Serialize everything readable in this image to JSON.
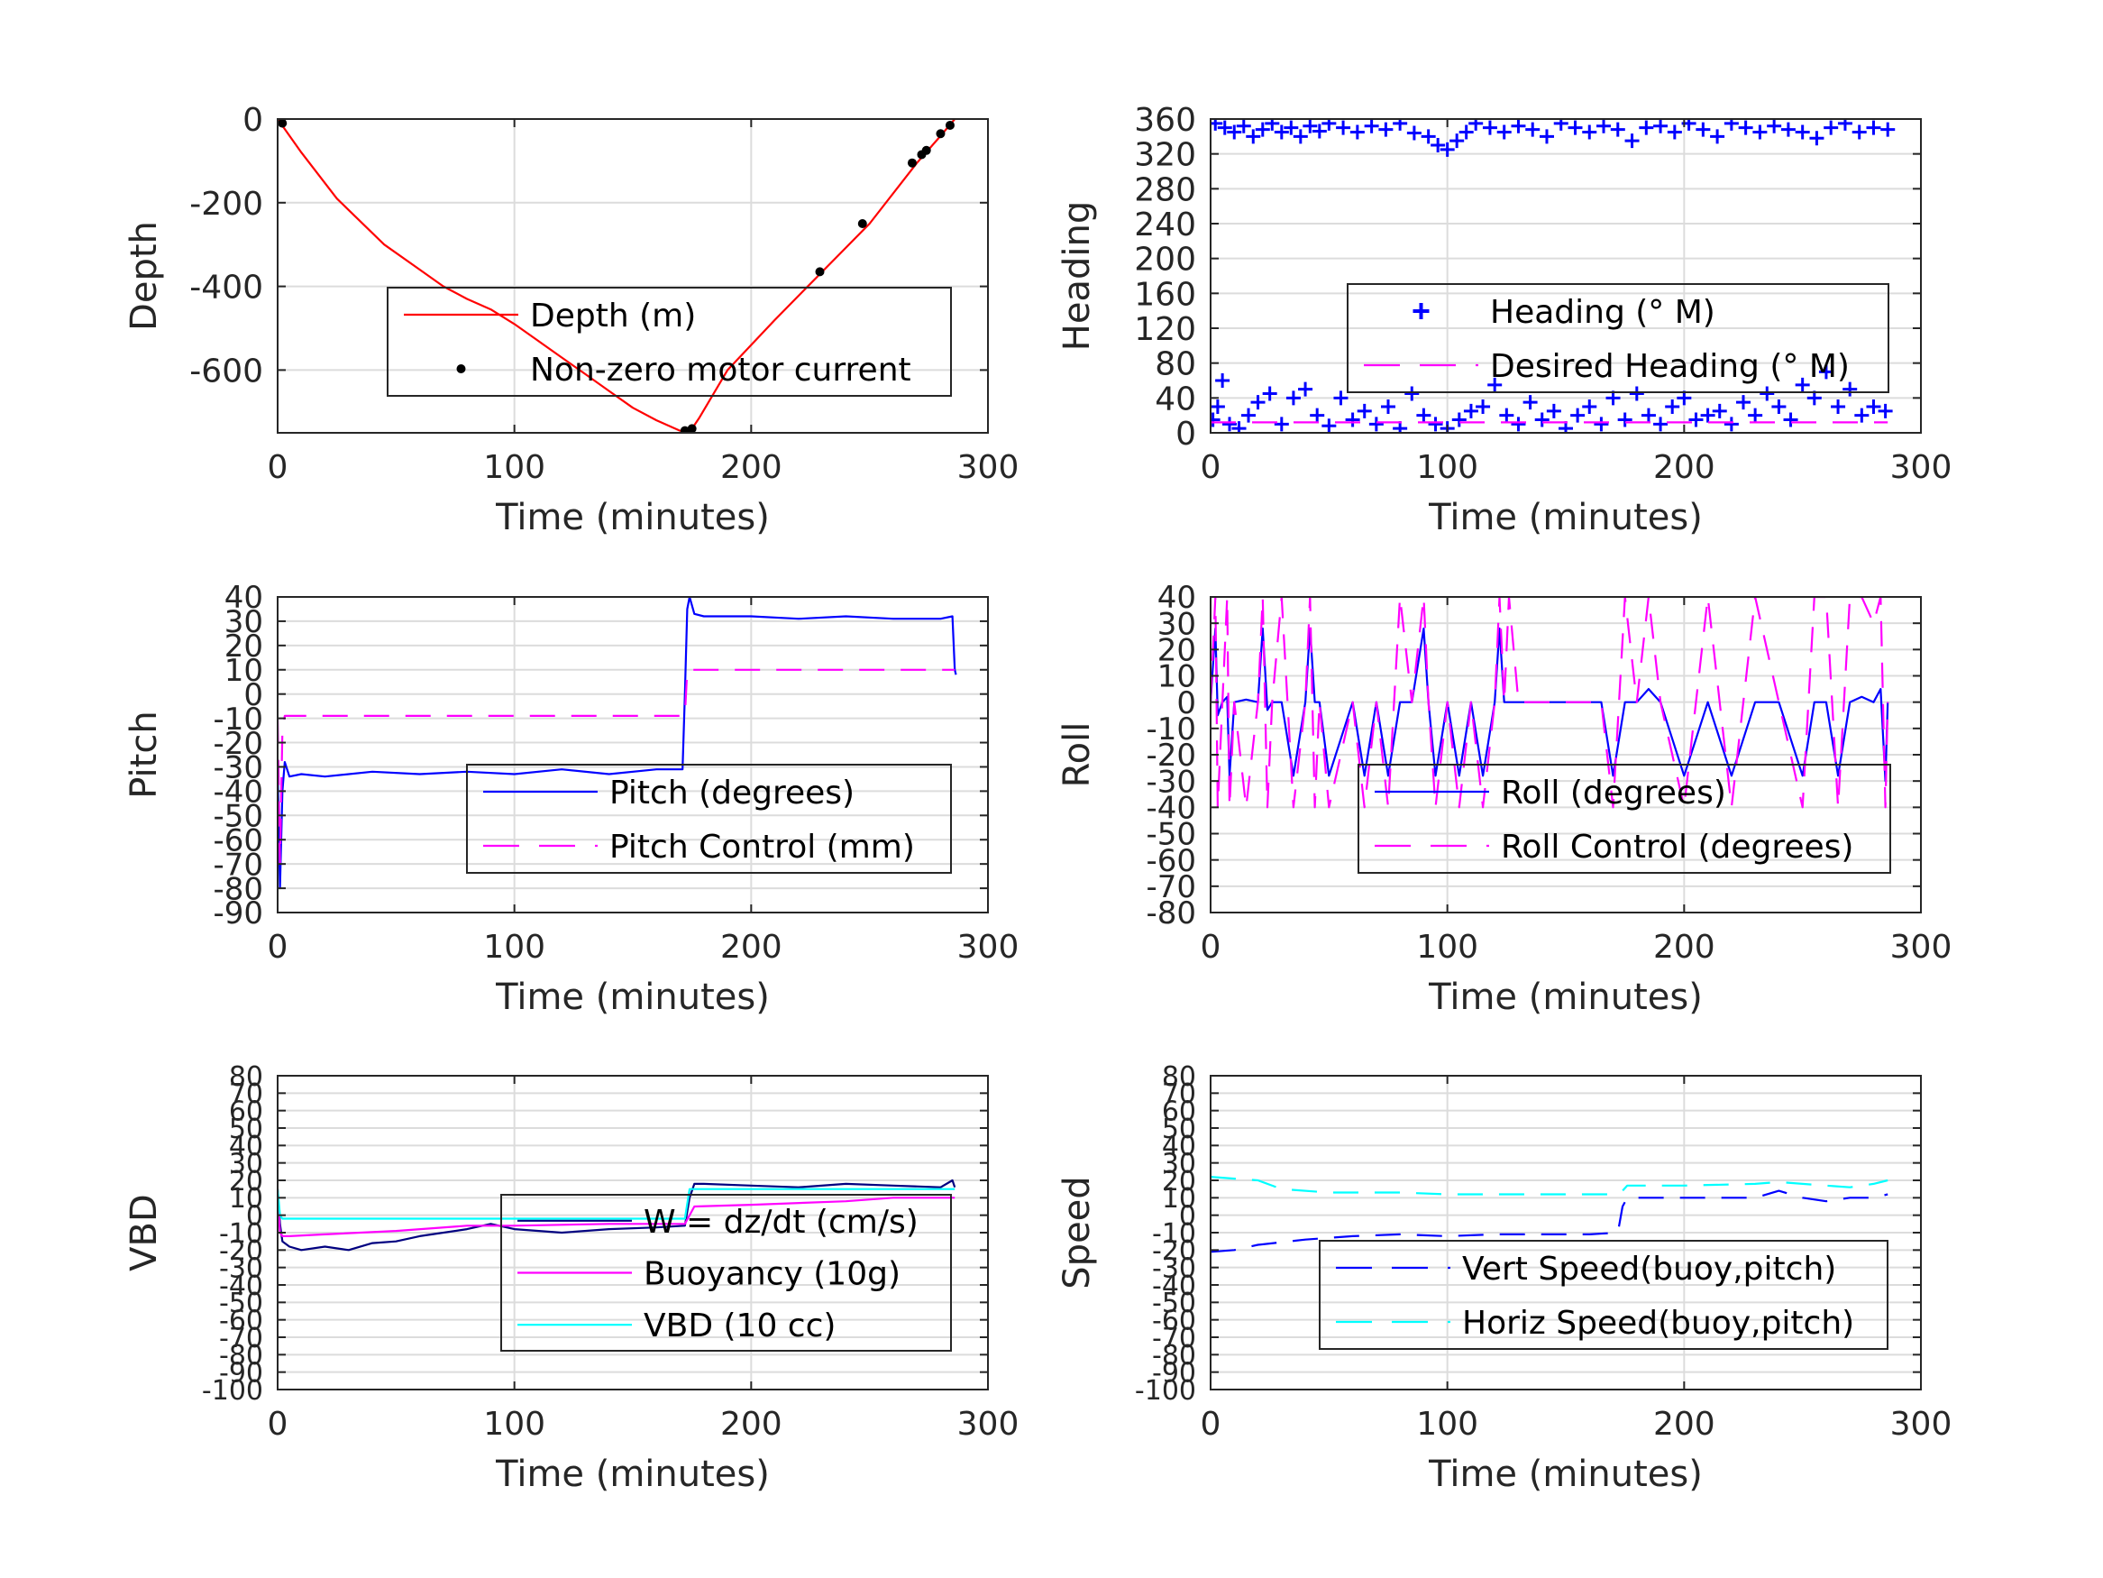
{
  "figure": {
    "background": "#ffffff",
    "grid_color": "#dcdcdc",
    "axis_color": "#262626"
  },
  "chart_data": [
    {
      "id": "depth",
      "type": "line",
      "xlabel": "Time (minutes)",
      "ylabel": "Depth",
      "xlim": [
        0,
        300
      ],
      "ylim": [
        -750,
        0
      ],
      "xticks": [
        0,
        100,
        200,
        300
      ],
      "yticks": [
        -600,
        -400,
        -200,
        0
      ],
      "grid": true,
      "legend_position": "center-right",
      "series": [
        {
          "name": "Depth (m)",
          "color": "#ff0000",
          "style": "solid",
          "kind": "line",
          "x": [
            0,
            10,
            25,
            45,
            60,
            70,
            80,
            90,
            100,
            110,
            120,
            130,
            140,
            150,
            160,
            170,
            175,
            178,
            190,
            210,
            230,
            250,
            270,
            280,
            286
          ],
          "y": [
            0,
            -80,
            -190,
            -300,
            -360,
            -400,
            -430,
            -455,
            -490,
            -530,
            -570,
            -610,
            -650,
            -690,
            -720,
            -745,
            -740,
            -715,
            -600,
            -480,
            -365,
            -250,
            -105,
            -40,
            0
          ]
        },
        {
          "name": "Non-zero motor current",
          "color": "#000000",
          "kind": "markers",
          "marker": "dot",
          "x": [
            2,
            172,
            175,
            229,
            247,
            268,
            272,
            274,
            280,
            284
          ],
          "y": [
            -10,
            -745,
            -740,
            -365,
            -250,
            -105,
            -85,
            -75,
            -35,
            -15
          ]
        }
      ]
    },
    {
      "id": "heading",
      "type": "scatter",
      "xlabel": "Time (minutes)",
      "ylabel": "Heading",
      "xlim": [
        0,
        300
      ],
      "ylim": [
        0,
        360
      ],
      "xticks": [
        0,
        100,
        200,
        300
      ],
      "yticks": [
        0,
        40,
        80,
        120,
        160,
        200,
        240,
        280,
        320,
        360
      ],
      "grid": true,
      "legend_position": "center-right",
      "series": [
        {
          "name": "Heading (° M)",
          "color": "#0000ff",
          "kind": "markers",
          "marker": "plus",
          "x": [
            1,
            3,
            5,
            8,
            12,
            16,
            20,
            25,
            30,
            35,
            40,
            45,
            50,
            55,
            60,
            65,
            70,
            75,
            80,
            85,
            90,
            95,
            100,
            105,
            110,
            115,
            120,
            125,
            130,
            135,
            140,
            145,
            150,
            155,
            160,
            165,
            170,
            175,
            180,
            185,
            190,
            195,
            200,
            205,
            210,
            215,
            220,
            225,
            230,
            235,
            240,
            245,
            250,
            255,
            260,
            265,
            270,
            275,
            280,
            285,
            2,
            6,
            10,
            14,
            18,
            22,
            26,
            30,
            34,
            38,
            42,
            46,
            50,
            56,
            62,
            68,
            74,
            80,
            86,
            92,
            96,
            100,
            104,
            108,
            112,
            118,
            124,
            130,
            136,
            142,
            148,
            154,
            160,
            166,
            172,
            178,
            184,
            190,
            196,
            202,
            208,
            214,
            220,
            226,
            232,
            238,
            244,
            250,
            256,
            262,
            268,
            274,
            280,
            286
          ],
          "y": [
            15,
            30,
            60,
            10,
            5,
            20,
            35,
            45,
            10,
            40,
            50,
            20,
            8,
            40,
            15,
            25,
            10,
            30,
            5,
            45,
            20,
            10,
            5,
            15,
            25,
            30,
            55,
            20,
            10,
            35,
            15,
            25,
            5,
            20,
            30,
            10,
            40,
            15,
            45,
            20,
            10,
            30,
            40,
            15,
            20,
            25,
            10,
            35,
            20,
            45,
            30,
            15,
            55,
            40,
            70,
            30,
            50,
            20,
            30,
            25,
            355,
            350,
            345,
            352,
            340,
            348,
            355,
            345,
            350,
            340,
            352,
            346,
            355,
            350,
            345,
            352,
            348,
            355,
            344,
            340,
            330,
            325,
            335,
            345,
            355,
            350,
            345,
            352,
            348,
            340,
            355,
            350,
            345,
            352,
            348,
            335,
            350,
            352,
            345,
            355,
            348,
            340,
            355,
            350,
            345,
            352,
            348,
            345,
            338,
            350,
            355,
            345,
            350,
            348
          ]
        },
        {
          "name": "Desired Heading (° M)",
          "color": "#ff00ff",
          "kind": "line",
          "style": "dashed",
          "x": [
            0,
            286
          ],
          "y": [
            12,
            12
          ]
        }
      ]
    },
    {
      "id": "pitch",
      "type": "line",
      "xlabel": "Time (minutes)",
      "ylabel": "Pitch",
      "xlim": [
        0,
        300
      ],
      "ylim": [
        -90,
        40
      ],
      "xticks": [
        0,
        100,
        200,
        300
      ],
      "yticks": [
        -90,
        -80,
        -70,
        -60,
        -50,
        -40,
        -30,
        -20,
        -10,
        0,
        10,
        20,
        30,
        40
      ],
      "grid": true,
      "legend_position": "lower-right",
      "series": [
        {
          "name": "Pitch (degrees)",
          "color": "#0000ff",
          "kind": "line",
          "style": "solid",
          "x": [
            0,
            1,
            2,
            3,
            5,
            10,
            20,
            40,
            60,
            80,
            100,
            120,
            140,
            160,
            171,
            172,
            173,
            174,
            176,
            180,
            200,
            220,
            240,
            260,
            280,
            285,
            286,
            286.5
          ],
          "y": [
            -30,
            -80,
            -40,
            -28,
            -34,
            -33,
            -34,
            -32,
            -33,
            -32,
            -33,
            -31,
            -33,
            -31,
            -31,
            0,
            35,
            40,
            33,
            32,
            32,
            31,
            32,
            31,
            31,
            32,
            10,
            8
          ]
        },
        {
          "name": "Pitch Control (mm)",
          "color": "#ff00ff",
          "kind": "line",
          "style": "dashed",
          "x": [
            0,
            1,
            2,
            3,
            172,
            173,
            286
          ],
          "y": [
            -10,
            -70,
            -15,
            -9,
            -9,
            10,
            10
          ]
        }
      ]
    },
    {
      "id": "roll",
      "type": "line",
      "xlabel": "Time (minutes)",
      "ylabel": "Roll",
      "xlim": [
        0,
        300
      ],
      "ylim": [
        -80,
        40
      ],
      "xticks": [
        0,
        100,
        200,
        300
      ],
      "yticks": [
        -80,
        -70,
        -60,
        -50,
        -40,
        -30,
        -20,
        -10,
        0,
        10,
        20,
        30,
        40
      ],
      "grid": true,
      "legend_position": "lower-right",
      "series": [
        {
          "name": "Roll (degrees)",
          "color": "#0000ff",
          "kind": "line",
          "style": "solid",
          "x": [
            0,
            2,
            3,
            5,
            7,
            8,
            10,
            15,
            20,
            22,
            24,
            26,
            30,
            35,
            40,
            42,
            44,
            46,
            50,
            60,
            65,
            70,
            75,
            80,
            85,
            90,
            92,
            95,
            100,
            105,
            110,
            115,
            120,
            122,
            124,
            126,
            130,
            140,
            150,
            160,
            165,
            170,
            175,
            180,
            185,
            190,
            200,
            210,
            220,
            230,
            240,
            250,
            255,
            260,
            265,
            270,
            275,
            280,
            283,
            285,
            286
          ],
          "y": [
            0,
            28,
            -5,
            0,
            2,
            -28,
            0,
            1,
            0,
            28,
            -3,
            0,
            0,
            -28,
            0,
            28,
            0,
            0,
            -28,
            0,
            -28,
            0,
            -28,
            0,
            0,
            28,
            0,
            -28,
            0,
            -28,
            0,
            -28,
            0,
            28,
            0,
            0,
            0,
            0,
            0,
            0,
            0,
            -28,
            0,
            0,
            5,
            0,
            -28,
            0,
            -28,
            0,
            0,
            -28,
            0,
            0,
            -28,
            0,
            2,
            0,
            5,
            -30,
            0
          ]
        },
        {
          "name": "Roll Control (degrees)",
          "color": "#ff00ff",
          "kind": "line",
          "style": "dashed",
          "x": [
            0,
            2,
            3,
            5,
            7,
            8,
            10,
            15,
            20,
            22,
            24,
            26,
            30,
            35,
            40,
            42,
            44,
            46,
            50,
            60,
            65,
            70,
            75,
            80,
            85,
            90,
            92,
            95,
            100,
            105,
            110,
            115,
            120,
            122,
            124,
            126,
            130,
            140,
            150,
            160,
            165,
            170,
            175,
            180,
            185,
            190,
            200,
            210,
            220,
            230,
            240,
            250,
            255,
            260,
            265,
            270,
            275,
            280,
            283,
            285,
            286
          ],
          "y": [
            0,
            40,
            -40,
            0,
            40,
            -40,
            0,
            -40,
            0,
            40,
            -40,
            0,
            40,
            -40,
            0,
            40,
            -40,
            0,
            -40,
            0,
            -40,
            0,
            -40,
            40,
            0,
            40,
            0,
            -40,
            0,
            -40,
            0,
            -40,
            0,
            40,
            0,
            40,
            0,
            0,
            0,
            0,
            0,
            -40,
            40,
            0,
            40,
            0,
            -40,
            40,
            -40,
            40,
            0,
            -40,
            40,
            40,
            -40,
            40,
            40,
            30,
            40,
            -40,
            0
          ]
        }
      ]
    },
    {
      "id": "vbd",
      "type": "line",
      "xlabel": "Time (minutes)",
      "ylabel": "VBD",
      "xlim": [
        0,
        300
      ],
      "ylim": [
        -100,
        80
      ],
      "xticks": [
        0,
        100,
        200,
        300
      ],
      "yticks": [
        -100,
        -90,
        -80,
        -70,
        -60,
        -50,
        -40,
        -30,
        -20,
        -10,
        0,
        10,
        20,
        30,
        40,
        50,
        60,
        70,
        80
      ],
      "grid": true,
      "legend_position": "center-right",
      "series": [
        {
          "name": "W = dz/dt (cm/s)",
          "color": "#000080",
          "kind": "line",
          "style": "solid",
          "x": [
            0,
            1,
            2,
            5,
            10,
            20,
            30,
            40,
            50,
            60,
            80,
            90,
            100,
            120,
            140,
            160,
            172,
            174,
            176,
            180,
            200,
            220,
            240,
            260,
            280,
            285,
            286
          ],
          "y": [
            15,
            -5,
            -15,
            -18,
            -20,
            -18,
            -20,
            -16,
            -15,
            -12,
            -8,
            -5,
            -8,
            -10,
            -8,
            -7,
            -6,
            10,
            18,
            18,
            17,
            16,
            18,
            17,
            16,
            20,
            16
          ]
        },
        {
          "name": "Buoyancy (10g)",
          "color": "#ff00ff",
          "kind": "line",
          "style": "solid",
          "x": [
            0,
            1,
            2,
            5,
            20,
            50,
            80,
            100,
            140,
            172,
            176,
            200,
            240,
            260,
            280,
            286
          ],
          "y": [
            10,
            -10,
            -12,
            -12,
            -11,
            -9,
            -6,
            -6,
            -5,
            -5,
            5,
            6,
            8,
            10,
            10,
            10
          ]
        },
        {
          "name": "VBD (10 cc)",
          "color": "#00ffff",
          "kind": "line",
          "style": "solid",
          "x": [
            0,
            1,
            2,
            172,
            174,
            286
          ],
          "y": [
            15,
            0,
            -2,
            -2,
            15,
            15
          ]
        }
      ]
    },
    {
      "id": "speed",
      "type": "line",
      "xlabel": "Time (minutes)",
      "ylabel": "Speed",
      "xlim": [
        0,
        300
      ],
      "ylim": [
        -100,
        80
      ],
      "xticks": [
        0,
        100,
        200,
        300
      ],
      "yticks": [
        -100,
        -90,
        -80,
        -70,
        -60,
        -50,
        -40,
        -30,
        -20,
        -10,
        0,
        10,
        20,
        30,
        40,
        50,
        60,
        70,
        80
      ],
      "grid": true,
      "legend_position": "lower-right",
      "series": [
        {
          "name": "Vert Speed(buoy,pitch)",
          "color": "#0000ff",
          "kind": "line",
          "style": "dashed",
          "x": [
            0,
            10,
            20,
            40,
            60,
            80,
            100,
            120,
            140,
            160,
            172,
            174,
            176,
            200,
            230,
            240,
            250,
            260,
            270,
            280,
            286
          ],
          "y": [
            -21,
            -20,
            -17,
            -14,
            -12,
            -11,
            -12,
            -11,
            -11,
            -11,
            -10,
            5,
            10,
            10,
            10,
            14,
            10,
            8,
            10,
            10,
            12
          ]
        },
        {
          "name": "Horiz Speed(buoy,pitch)",
          "color": "#00ffff",
          "kind": "line",
          "style": "dashed",
          "x": [
            0,
            10,
            20,
            30,
            50,
            80,
            100,
            140,
            170,
            174,
            176,
            200,
            230,
            240,
            250,
            260,
            270,
            280,
            286
          ],
          "y": [
            22,
            21,
            20,
            15,
            13,
            13,
            12,
            12,
            12,
            14,
            17,
            17,
            18,
            19,
            18,
            17,
            16,
            18,
            20
          ]
        }
      ]
    }
  ]
}
